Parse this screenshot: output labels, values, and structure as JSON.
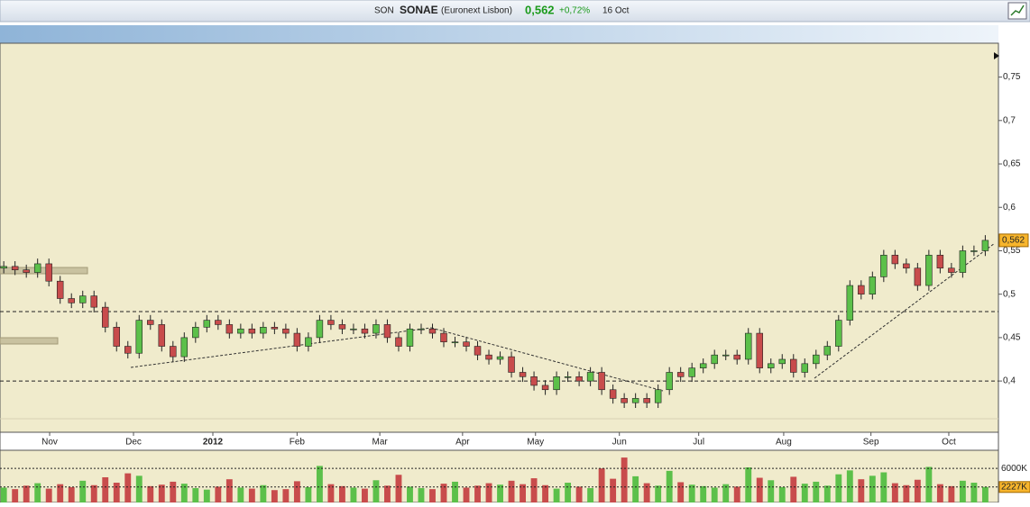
{
  "header": {
    "symbol": "SON",
    "name": "SONAE",
    "exchange": "(Euronext Lisbon)",
    "price": "0,562",
    "change": "+0,72%",
    "date": "16 Oct"
  },
  "chart_data": {
    "type": "candlestick",
    "x": [
      1,
      4,
      7,
      10,
      13,
      16,
      19,
      22,
      25,
      28,
      31,
      34,
      37,
      40,
      43,
      46,
      49,
      52,
      55,
      58,
      61,
      64,
      67,
      70,
      73,
      76,
      79,
      82,
      85,
      88,
      91,
      94,
      97,
      100,
      103,
      106,
      109,
      112,
      115,
      118,
      121,
      124,
      127,
      130,
      133,
      136,
      139,
      142,
      145,
      148,
      151,
      154,
      157,
      160,
      163,
      166,
      169,
      172,
      175,
      178,
      181,
      184,
      187,
      190,
      193,
      196,
      199,
      202,
      205,
      208,
      211,
      214,
      217,
      220,
      223,
      226,
      229,
      232,
      235,
      238,
      241,
      244,
      247,
      250,
      253,
      256,
      259,
      262
    ],
    "open": [
      0.53,
      0.532,
      0.528,
      0.525,
      0.535,
      0.515,
      0.495,
      0.49,
      0.498,
      0.485,
      0.462,
      0.44,
      0.432,
      0.47,
      0.465,
      0.44,
      0.428,
      0.45,
      0.462,
      0.47,
      0.465,
      0.455,
      0.46,
      0.455,
      0.462,
      0.46,
      0.455,
      0.44,
      0.45,
      0.47,
      0.465,
      0.46,
      0.46,
      0.455,
      0.465,
      0.45,
      0.44,
      0.46,
      0.46,
      0.455,
      0.445,
      0.445,
      0.44,
      0.43,
      0.425,
      0.428,
      0.41,
      0.405,
      0.395,
      0.39,
      0.405,
      0.405,
      0.4,
      0.41,
      0.39,
      0.38,
      0.375,
      0.38,
      0.375,
      0.39,
      0.41,
      0.405,
      0.415,
      0.42,
      0.43,
      0.43,
      0.425,
      0.455,
      0.415,
      0.42,
      0.425,
      0.41,
      0.42,
      0.43,
      0.44,
      0.47,
      0.51,
      0.5,
      0.52,
      0.545,
      0.535,
      0.53,
      0.51,
      0.545,
      0.53,
      0.525,
      0.55,
      0.55
    ],
    "high": [
      0.538,
      0.538,
      0.534,
      0.541,
      0.541,
      0.521,
      0.501,
      0.504,
      0.504,
      0.491,
      0.468,
      0.446,
      0.476,
      0.476,
      0.471,
      0.446,
      0.456,
      0.468,
      0.476,
      0.476,
      0.471,
      0.466,
      0.466,
      0.468,
      0.468,
      0.466,
      0.461,
      0.456,
      0.476,
      0.476,
      0.471,
      0.466,
      0.466,
      0.471,
      0.471,
      0.456,
      0.466,
      0.466,
      0.466,
      0.461,
      0.451,
      0.451,
      0.446,
      0.436,
      0.434,
      0.434,
      0.416,
      0.411,
      0.401,
      0.411,
      0.411,
      0.411,
      0.416,
      0.416,
      0.396,
      0.386,
      0.386,
      0.386,
      0.396,
      0.416,
      0.416,
      0.421,
      0.426,
      0.436,
      0.436,
      0.436,
      0.461,
      0.461,
      0.426,
      0.431,
      0.431,
      0.426,
      0.436,
      0.446,
      0.476,
      0.516,
      0.516,
      0.526,
      0.551,
      0.551,
      0.541,
      0.536,
      0.551,
      0.551,
      0.536,
      0.556,
      0.556,
      0.568
    ],
    "low": [
      0.524,
      0.522,
      0.519,
      0.519,
      0.509,
      0.489,
      0.484,
      0.484,
      0.479,
      0.456,
      0.434,
      0.426,
      0.426,
      0.459,
      0.434,
      0.422,
      0.422,
      0.444,
      0.456,
      0.459,
      0.449,
      0.449,
      0.449,
      0.449,
      0.454,
      0.449,
      0.434,
      0.434,
      0.444,
      0.459,
      0.454,
      0.454,
      0.449,
      0.449,
      0.444,
      0.434,
      0.434,
      0.454,
      0.449,
      0.439,
      0.439,
      0.434,
      0.424,
      0.419,
      0.419,
      0.404,
      0.399,
      0.389,
      0.384,
      0.384,
      0.399,
      0.394,
      0.394,
      0.384,
      0.374,
      0.369,
      0.369,
      0.369,
      0.369,
      0.384,
      0.399,
      0.399,
      0.409,
      0.414,
      0.424,
      0.419,
      0.419,
      0.409,
      0.409,
      0.414,
      0.404,
      0.404,
      0.414,
      0.424,
      0.434,
      0.464,
      0.494,
      0.494,
      0.514,
      0.529,
      0.524,
      0.504,
      0.504,
      0.524,
      0.519,
      0.519,
      0.544,
      0.544
    ],
    "close": [
      0.532,
      0.528,
      0.525,
      0.535,
      0.515,
      0.495,
      0.49,
      0.498,
      0.485,
      0.462,
      0.44,
      0.432,
      0.47,
      0.465,
      0.44,
      0.428,
      0.45,
      0.462,
      0.47,
      0.465,
      0.455,
      0.46,
      0.455,
      0.462,
      0.46,
      0.455,
      0.44,
      0.45,
      0.47,
      0.465,
      0.46,
      0.46,
      0.455,
      0.465,
      0.45,
      0.44,
      0.46,
      0.46,
      0.455,
      0.445,
      0.445,
      0.44,
      0.43,
      0.425,
      0.428,
      0.41,
      0.405,
      0.395,
      0.39,
      0.405,
      0.405,
      0.4,
      0.41,
      0.39,
      0.38,
      0.375,
      0.38,
      0.375,
      0.39,
      0.41,
      0.405,
      0.415,
      0.42,
      0.43,
      0.43,
      0.425,
      0.455,
      0.415,
      0.42,
      0.425,
      0.41,
      0.42,
      0.43,
      0.44,
      0.47,
      0.51,
      0.5,
      0.52,
      0.545,
      0.535,
      0.53,
      0.51,
      0.545,
      0.53,
      0.525,
      0.55,
      0.55,
      0.562
    ],
    "up_color": "#5cc04a",
    "down_color": "#c84c4c",
    "xlim": [
      0,
      265.5
    ],
    "ylim": [
      0.341,
      0.789
    ],
    "xticks": [
      {
        "value": 13.2,
        "label": "Nov"
      },
      {
        "value": 35.5,
        "label": "Dec"
      },
      {
        "value": 56.6,
        "label": "2012"
      },
      {
        "value": 79,
        "label": "Feb"
      },
      {
        "value": 101,
        "label": "Mar"
      },
      {
        "value": 123,
        "label": "Apr"
      },
      {
        "value": 142.4,
        "label": "May"
      },
      {
        "value": 164.7,
        "label": "Jun"
      },
      {
        "value": 185.8,
        "label": "Jul"
      },
      {
        "value": 208.4,
        "label": "Aug"
      },
      {
        "value": 231.6,
        "label": "Sep"
      },
      {
        "value": 252.3,
        "label": "Oct"
      }
    ],
    "yticks": [
      {
        "value": 0.4,
        "label": "0,4"
      },
      {
        "value": 0.45,
        "label": "0,45"
      },
      {
        "value": 0.5,
        "label": "0,5"
      },
      {
        "value": 0.55,
        "label": "0,55"
      },
      {
        "value": 0.6,
        "label": "0,6"
      },
      {
        "value": 0.65,
        "label": "0,65"
      },
      {
        "value": 0.7,
        "label": "0,7"
      },
      {
        "value": 0.75,
        "label": "0,75"
      }
    ],
    "hlines": [
      0.48,
      0.4
    ],
    "last_price": {
      "value": 0.562,
      "label": "0,562"
    },
    "volume": {
      "values": [
        2100,
        1800,
        2500,
        3000,
        1900,
        2800,
        2200,
        3500,
        2600,
        4200,
        3100,
        5000,
        4500,
        2400,
        2700,
        3300,
        2900,
        2000,
        1700,
        2300,
        3800,
        2100,
        1900,
        2600,
        1600,
        1800,
        3400,
        2200,
        6500,
        2800,
        2400,
        2100,
        1900,
        3600,
        2500,
        4700,
        2300,
        2000,
        1800,
        2900,
        3300,
        2100,
        2500,
        3000,
        2700,
        3500,
        2800,
        4000,
        2600,
        1900,
        3100,
        2300,
        2000,
        6000,
        3900,
        8200,
        4400,
        3000,
        2500,
        5500,
        3200,
        2700,
        2400,
        2100,
        2800,
        2300,
        6200,
        4100,
        3600,
        2200,
        4300,
        2900,
        3300,
        2500,
        4800,
        5600,
        3800,
        4500,
        5200,
        3000,
        2600,
        3700,
        6300,
        2800,
        2400,
        3500,
        3100,
        2227
      ],
      "ylim": [
        0,
        11500
      ],
      "yticks": [
        {
          "value": 6000,
          "label": "6000K"
        },
        {
          "value": 2227,
          "label": "2227K"
        }
      ]
    }
  }
}
